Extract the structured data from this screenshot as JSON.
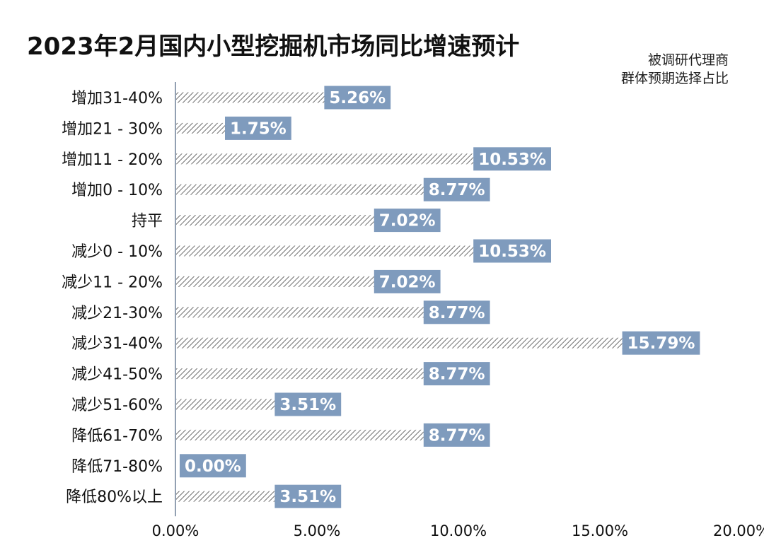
{
  "chart_data": {
    "type": "bar",
    "orientation": "horizontal",
    "title": "2023年2月国内小型挖掘机市场同比增速预计",
    "note_lines": [
      "被调研代理商",
      "群体预期选择占比"
    ],
    "categories": [
      "增加31-40%",
      "增加21 - 30%",
      "增加11 - 20%",
      "增加0 - 10%",
      "持平",
      "减少0 - 10%",
      "减少11 - 20%",
      "减少21-30%",
      "减少31-40%",
      "减少41-50%",
      "减少51-60%",
      "降低61-70%",
      "降低71-80%",
      "降低80%以上"
    ],
    "values": [
      5.26,
      1.75,
      10.53,
      8.77,
      7.02,
      10.53,
      7.02,
      8.77,
      15.79,
      8.77,
      3.51,
      8.77,
      0.0,
      3.51
    ],
    "data_labels": [
      "5.26%",
      "1.75%",
      "10.53%",
      "8.77%",
      "7.02%",
      "10.53%",
      "7.02%",
      "8.77%",
      "15.79%",
      "8.77%",
      "3.51%",
      "8.77%",
      "0.00%",
      "3.51%"
    ],
    "xlim": [
      0,
      20
    ],
    "x_ticks": [
      0,
      5,
      10,
      15,
      20
    ],
    "x_tick_labels": [
      "0.00%",
      "5.00%",
      "10.00%",
      "15.00%",
      "20.00%"
    ],
    "grid": false,
    "colors": {
      "bar_hatch": "#6d6d6d",
      "label_box": "#7f9bbd",
      "axis": "#6f8199"
    }
  }
}
